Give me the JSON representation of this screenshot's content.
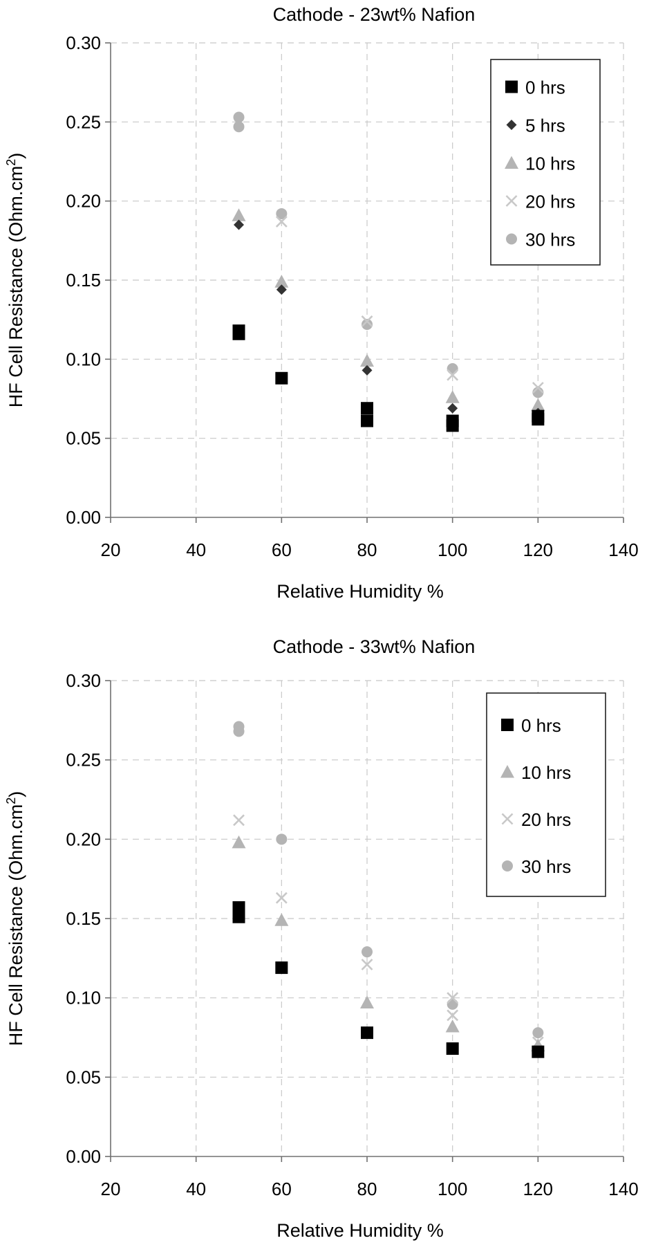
{
  "chart_data": [
    {
      "type": "scatter",
      "title": "Cathode - 23wt% Nafion",
      "xlabel": "Relative Humidity %",
      "ylabel": "HF Cell Resistance (Ohm.cm",
      "ylabel_sup": "2",
      "ylabel_end": ")",
      "xlim": [
        20,
        140
      ],
      "ylim": [
        0,
        0.3
      ],
      "xticks": [
        "20",
        "40",
        "60",
        "80",
        "100",
        "120",
        "140"
      ],
      "yticks": [
        "0.00",
        "0.05",
        "0.10",
        "0.15",
        "0.20",
        "0.25",
        "0.30"
      ],
      "grid": true,
      "legend_position": "top-right",
      "series": [
        {
          "name": "0 hrs",
          "marker": "square",
          "color": "#000000",
          "points": [
            [
              50,
              0.118
            ],
            [
              50,
              0.116
            ],
            [
              60,
              0.088
            ],
            [
              80,
              0.069
            ],
            [
              80,
              0.061
            ],
            [
              100,
              0.061
            ],
            [
              100,
              0.058
            ],
            [
              120,
              0.064
            ],
            [
              120,
              0.062
            ]
          ]
        },
        {
          "name": "5 hrs",
          "marker": "diamond",
          "color": "#333333",
          "points": [
            [
              50,
              0.185
            ],
            [
              60,
              0.144
            ],
            [
              80,
              0.093
            ],
            [
              100,
              0.069
            ],
            [
              120,
              0.066
            ]
          ]
        },
        {
          "name": "10 hrs",
          "marker": "triangle",
          "color": "#b4b4b4",
          "points": [
            [
              50,
              0.191
            ],
            [
              60,
              0.149
            ],
            [
              80,
              0.099
            ],
            [
              100,
              0.076
            ],
            [
              120,
              0.071
            ]
          ]
        },
        {
          "name": "20 hrs",
          "marker": "x",
          "color": "#c8c8c8",
          "points": [
            [
              60,
              0.187
            ],
            [
              80,
              0.124
            ],
            [
              100,
              0.09
            ],
            [
              120,
              0.082
            ]
          ]
        },
        {
          "name": "30 hrs",
          "marker": "circle",
          "color": "#b4b4b4",
          "points": [
            [
              50,
              0.253
            ],
            [
              50,
              0.247
            ],
            [
              60,
              0.192
            ],
            [
              80,
              0.122
            ],
            [
              100,
              0.094
            ],
            [
              120,
              0.079
            ]
          ]
        }
      ]
    },
    {
      "type": "scatter",
      "title": "Cathode - 33wt% Nafion",
      "xlabel": "Relative Humidity %",
      "ylabel": "HF Cell Resistance (Ohm.cm",
      "ylabel_sup": "2",
      "ylabel_end": ")",
      "xlim": [
        20,
        140
      ],
      "ylim": [
        0,
        0.3
      ],
      "xticks": [
        "20",
        "40",
        "60",
        "80",
        "100",
        "120",
        "140"
      ],
      "yticks": [
        "0.00",
        "0.05",
        "0.10",
        "0.15",
        "0.20",
        "0.25",
        "0.30"
      ],
      "grid": true,
      "legend_position": "top-right",
      "series": [
        {
          "name": "0 hrs",
          "marker": "square",
          "color": "#000000",
          "points": [
            [
              50,
              0.157
            ],
            [
              50,
              0.151
            ],
            [
              60,
              0.119
            ],
            [
              80,
              0.078
            ],
            [
              100,
              0.068
            ],
            [
              120,
              0.066
            ]
          ]
        },
        {
          "name": "10 hrs",
          "marker": "triangle",
          "color": "#b4b4b4",
          "points": [
            [
              50,
              0.198
            ],
            [
              60,
              0.149
            ],
            [
              80,
              0.097
            ],
            [
              100,
              0.082
            ],
            [
              120,
              0.07
            ]
          ]
        },
        {
          "name": "20 hrs",
          "marker": "x",
          "color": "#c8c8c8",
          "points": [
            [
              50,
              0.212
            ],
            [
              60,
              0.163
            ],
            [
              80,
              0.121
            ],
            [
              100,
              0.1
            ],
            [
              100,
              0.089
            ],
            [
              120,
              0.072
            ]
          ]
        },
        {
          "name": "30 hrs",
          "marker": "circle",
          "color": "#b4b4b4",
          "points": [
            [
              50,
              0.271
            ],
            [
              50,
              0.268
            ],
            [
              60,
              0.2
            ],
            [
              80,
              0.129
            ],
            [
              100,
              0.096
            ],
            [
              120,
              0.078
            ]
          ]
        }
      ]
    }
  ]
}
